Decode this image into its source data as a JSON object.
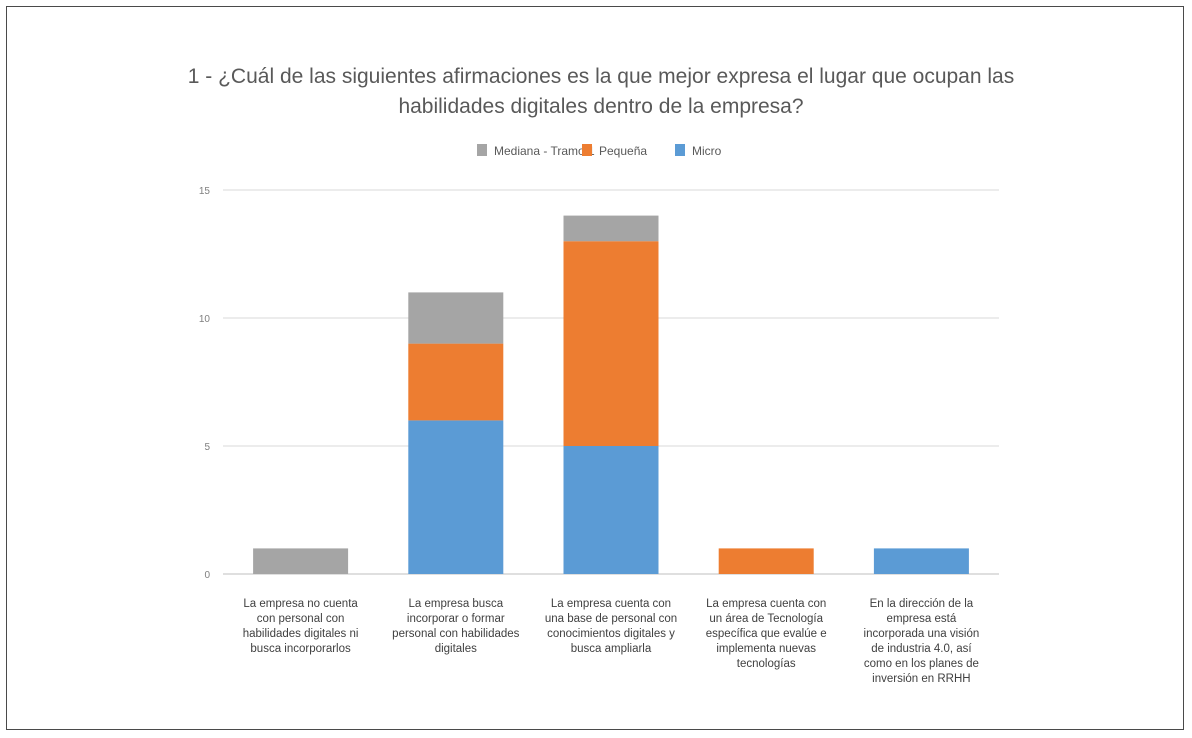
{
  "chart_data": {
    "type": "bar",
    "stacked": true,
    "title": "1 - ¿Cuál de las siguientes afirmaciones es la que mejor expresa el lugar que ocupan las habilidades digitales dentro de la empresa?",
    "title_lines": [
      "1 - ¿Cuál de las siguientes afirmaciones es la que mejor expresa el lugar que ocupan las",
      "habilidades digitales dentro de la empresa?"
    ],
    "xlabel": "",
    "ylabel": "",
    "legend_position": "top",
    "grid": true,
    "ylim": [
      0,
      15
    ],
    "yticks": [
      "0",
      "5",
      "10",
      "15"
    ],
    "categories": [
      "La empresa no cuenta con personal con habilidades digitales ni busca incorporarlos",
      "La empresa busca incorporar o formar personal con habilidades digitales",
      "La empresa cuenta con una base de personal con conocimientos digitales y busca ampliarla",
      "La empresa cuenta con un área de Tecnología específica que evalúe e implementa nuevas tecnologías",
      "En la dirección de la empresa está incorporada una visión de industria 4.0, así como en los planes de inversión en RRHH"
    ],
    "category_lines": [
      [
        "La empresa no cuenta",
        "con personal con",
        "habilidades digitales ni",
        "busca incorporarlos"
      ],
      [
        "La empresa busca",
        "incorporar o formar",
        "personal con habilidades",
        "digitales"
      ],
      [
        "La empresa cuenta con",
        "una base de personal con",
        "conocimientos digitales y",
        "busca ampliarla"
      ],
      [
        "La empresa cuenta con",
        "un área de Tecnología",
        "específica que evalúe e",
        "implementa nuevas",
        "tecnologías"
      ],
      [
        "En la dirección de la",
        "empresa está",
        "incorporada una visión",
        "de industria 4.0, así",
        "como en los planes de",
        "inversión en RRHH"
      ]
    ],
    "series": [
      {
        "name": "Micro",
        "color": "#5b9bd5",
        "values": [
          0,
          6,
          5,
          0,
          1
        ]
      },
      {
        "name": "Pequeña",
        "color": "#ed7d31",
        "values": [
          0,
          3,
          8,
          1,
          0
        ]
      },
      {
        "name": "Mediana - Tramo 1",
        "color": "#a5a5a5",
        "values": [
          1,
          2,
          1,
          0,
          0
        ]
      }
    ],
    "legend_order": [
      "Mediana - Tramo 1",
      "Pequeña",
      "Micro"
    ]
  }
}
